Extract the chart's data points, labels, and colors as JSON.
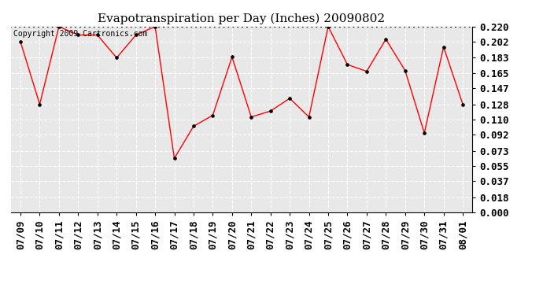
{
  "title": "Evapotranspiration per Day (Inches) 20090802",
  "copyright_text": "Copyright 2009 Cartronics.com",
  "dates": [
    "07/09",
    "07/10",
    "07/11",
    "07/12",
    "07/13",
    "07/14",
    "07/15",
    "07/16",
    "07/17",
    "07/18",
    "07/19",
    "07/20",
    "07/21",
    "07/22",
    "07/23",
    "07/24",
    "07/25",
    "07/26",
    "07/27",
    "07/28",
    "07/29",
    "07/30",
    "07/31",
    "08/01"
  ],
  "values": [
    0.202,
    0.128,
    0.22,
    0.21,
    0.21,
    0.183,
    0.21,
    0.22,
    0.064,
    0.102,
    0.115,
    0.184,
    0.113,
    0.12,
    0.135,
    0.113,
    0.22,
    0.175,
    0.167,
    0.205,
    0.168,
    0.094,
    0.196,
    0.128
  ],
  "ylim": [
    0.0,
    0.22
  ],
  "yticks": [
    0.0,
    0.018,
    0.037,
    0.055,
    0.073,
    0.092,
    0.11,
    0.128,
    0.147,
    0.165,
    0.183,
    0.202,
    0.22
  ],
  "line_color": "red",
  "marker": "o",
  "marker_size": 2.5,
  "bg_color": "#ffffff",
  "plot_bg_color": "#e8e8e8",
  "grid_color": "#ffffff",
  "title_fontsize": 11,
  "tick_fontsize": 9,
  "copyright_fontsize": 7
}
